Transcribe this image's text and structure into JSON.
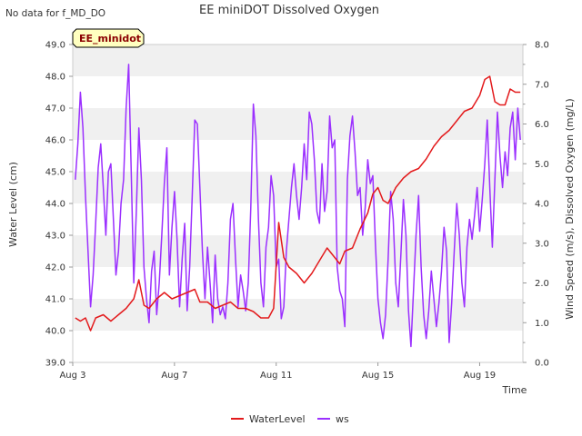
{
  "figure": {
    "title": "EE miniDOT Dissolved Oxygen",
    "note": "No data for f_MD_DO",
    "site_label": "EE_minidot"
  },
  "chart_data": {
    "type": "line",
    "title": "EE miniDOT Dissolved Oxygen",
    "xlabel": "Time",
    "ylabel": "Water Level (cm)",
    "y2label": "Wind Speed (m/s), Dissolved Oxygen (mg/L)",
    "x_ticks": [
      "Aug 3",
      "Aug 7",
      "Aug 11",
      "Aug 15",
      "Aug 19"
    ],
    "x_tick_days": [
      3,
      7,
      11,
      15,
      19
    ],
    "xlim": [
      3,
      20.7
    ],
    "ylim": [
      39.0,
      49.0
    ],
    "y_ticks": [
      "39.0",
      "40.0",
      "41.0",
      "42.0",
      "43.0",
      "44.0",
      "45.0",
      "46.0",
      "47.0",
      "48.0",
      "49.0"
    ],
    "y2lim": [
      0.0,
      8.0
    ],
    "y2_ticks": [
      "0.0",
      "1.0",
      "2.0",
      "3.0",
      "4.0",
      "5.0",
      "6.0",
      "7.0",
      "8.0"
    ],
    "grid": "horizontal bands",
    "legend_position": "bottom-center",
    "series": [
      {
        "name": "WaterLevel",
        "axis": "left",
        "color": "#e31a1c",
        "x": [
          3.1,
          3.3,
          3.5,
          3.7,
          3.9,
          4.2,
          4.5,
          4.8,
          5.1,
          5.4,
          5.6,
          5.8,
          6.0,
          6.3,
          6.6,
          6.9,
          7.2,
          7.5,
          7.8,
          8.0,
          8.3,
          8.6,
          8.9,
          9.2,
          9.5,
          9.8,
          10.1,
          10.4,
          10.7,
          10.9,
          11.1,
          11.3,
          11.5,
          11.8,
          12.1,
          12.4,
          12.7,
          13.0,
          13.3,
          13.5,
          13.7,
          14.0,
          14.3,
          14.6,
          14.8,
          15.0,
          15.2,
          15.4,
          15.7,
          16.0,
          16.3,
          16.6,
          16.9,
          17.2,
          17.5,
          17.8,
          18.1,
          18.4,
          18.7,
          19.0,
          19.2,
          19.4,
          19.6,
          19.8,
          20.0,
          20.2,
          20.4,
          20.6
        ],
        "values": [
          40.4,
          40.3,
          40.4,
          40.0,
          40.4,
          40.5,
          40.3,
          40.5,
          40.7,
          41.0,
          41.6,
          40.8,
          40.7,
          41.0,
          41.2,
          41.0,
          41.1,
          41.2,
          41.3,
          40.9,
          40.9,
          40.7,
          40.8,
          40.9,
          40.7,
          40.7,
          40.6,
          40.4,
          40.4,
          40.7,
          43.4,
          42.3,
          42.0,
          41.8,
          41.5,
          41.8,
          42.2,
          42.6,
          42.3,
          42.1,
          42.5,
          42.6,
          43.2,
          43.7,
          44.3,
          44.5,
          44.1,
          44.0,
          44.5,
          44.8,
          45.0,
          45.1,
          45.4,
          45.8,
          46.1,
          46.3,
          46.6,
          46.9,
          47.0,
          47.4,
          47.9,
          48.0,
          47.2,
          47.1,
          47.1,
          47.6,
          47.5,
          47.5
        ]
      },
      {
        "name": "ws",
        "axis": "right",
        "color": "#9b30ff",
        "x": [
          3.1,
          3.2,
          3.3,
          3.4,
          3.5,
          3.6,
          3.7,
          3.8,
          3.9,
          4.0,
          4.1,
          4.2,
          4.3,
          4.4,
          4.5,
          4.6,
          4.7,
          4.8,
          4.9,
          5.0,
          5.1,
          5.2,
          5.3,
          5.4,
          5.5,
          5.6,
          5.7,
          5.8,
          5.9,
          6.0,
          6.1,
          6.2,
          6.3,
          6.4,
          6.5,
          6.6,
          6.7,
          6.8,
          6.9,
          7.0,
          7.1,
          7.2,
          7.3,
          7.4,
          7.5,
          7.6,
          7.7,
          7.8,
          7.9,
          8.0,
          8.1,
          8.2,
          8.3,
          8.4,
          8.5,
          8.6,
          8.7,
          8.8,
          8.9,
          9.0,
          9.1,
          9.2,
          9.3,
          9.4,
          9.5,
          9.6,
          9.7,
          9.8,
          9.9,
          10.0,
          10.1,
          10.2,
          10.3,
          10.4,
          10.5,
          10.6,
          10.7,
          10.8,
          10.9,
          11.0,
          11.1,
          11.2,
          11.3,
          11.4,
          11.5,
          11.6,
          11.7,
          11.8,
          11.9,
          12.0,
          12.1,
          12.2,
          12.3,
          12.4,
          12.5,
          12.6,
          12.7,
          12.8,
          12.9,
          13.0,
          13.1,
          13.2,
          13.3,
          13.4,
          13.5,
          13.6,
          13.7,
          13.8,
          13.9,
          14.0,
          14.1,
          14.2,
          14.3,
          14.4,
          14.5,
          14.6,
          14.7,
          14.8,
          14.9,
          15.0,
          15.1,
          15.2,
          15.3,
          15.4,
          15.5,
          15.6,
          15.7,
          15.8,
          15.9,
          16.0,
          16.1,
          16.2,
          16.3,
          16.4,
          16.5,
          16.6,
          16.7,
          16.8,
          16.9,
          17.0,
          17.1,
          17.2,
          17.3,
          17.4,
          17.5,
          17.6,
          17.7,
          17.8,
          17.9,
          18.0,
          18.1,
          18.2,
          18.3,
          18.4,
          18.5,
          18.6,
          18.7,
          18.8,
          18.9,
          19.0,
          19.1,
          19.2,
          19.3,
          19.4,
          19.5,
          19.6,
          19.7,
          19.8,
          19.9,
          20.0,
          20.1,
          20.2,
          20.3,
          20.4,
          20.5,
          20.6
        ],
        "values": [
          4.6,
          5.5,
          6.8,
          5.9,
          4.2,
          2.8,
          1.4,
          2.2,
          3.5,
          4.9,
          5.5,
          4.4,
          3.2,
          4.8,
          5.0,
          3.6,
          2.2,
          2.8,
          4.0,
          4.6,
          6.4,
          7.5,
          4.8,
          2.0,
          3.8,
          5.9,
          4.6,
          2.4,
          1.6,
          1.0,
          2.3,
          2.8,
          1.2,
          2.0,
          3.2,
          4.5,
          5.4,
          2.2,
          3.4,
          4.3,
          3.1,
          1.4,
          2.6,
          3.5,
          1.3,
          2.4,
          4.2,
          6.1,
          6.0,
          4.4,
          2.8,
          1.6,
          2.9,
          2.0,
          1.0,
          2.7,
          1.6,
          1.2,
          1.4,
          1.1,
          2.0,
          3.6,
          4.0,
          2.6,
          1.4,
          2.2,
          1.8,
          1.3,
          2.0,
          3.9,
          6.5,
          5.7,
          3.6,
          2.0,
          1.4,
          2.9,
          3.4,
          4.7,
          4.2,
          2.4,
          2.6,
          1.1,
          1.4,
          2.8,
          3.6,
          4.4,
          5.0,
          4.2,
          3.6,
          4.4,
          5.5,
          4.6,
          6.3,
          6.0,
          5.1,
          3.8,
          3.5,
          5.0,
          3.8,
          4.3,
          6.2,
          5.4,
          5.6,
          2.4,
          1.8,
          1.6,
          0.9,
          4.6,
          5.7,
          6.2,
          5.3,
          4.2,
          4.4,
          3.2,
          3.9,
          5.1,
          4.5,
          4.7,
          3.0,
          1.6,
          1.0,
          0.6,
          1.2,
          2.6,
          4.3,
          3.6,
          2.0,
          1.4,
          2.7,
          4.1,
          3.2,
          1.3,
          0.4,
          1.8,
          3.2,
          4.2,
          2.4,
          1.2,
          0.6,
          1.3,
          2.3,
          1.6,
          0.9,
          1.5,
          2.3,
          3.4,
          2.8,
          0.5,
          1.5,
          2.8,
          4.0,
          3.2,
          2.0,
          1.4,
          2.9,
          3.6,
          3.1,
          3.7,
          4.4,
          3.3,
          4.1,
          5.0,
          6.1,
          4.4,
          2.9,
          4.6,
          6.3,
          5.2,
          4.4,
          5.3,
          4.7,
          5.9,
          6.3,
          5.1,
          6.4,
          5.6
        ]
      }
    ]
  },
  "legend": {
    "items": [
      {
        "label": "WaterLevel",
        "color": "#e31a1c"
      },
      {
        "label": "ws",
        "color": "#9b30ff"
      }
    ]
  }
}
